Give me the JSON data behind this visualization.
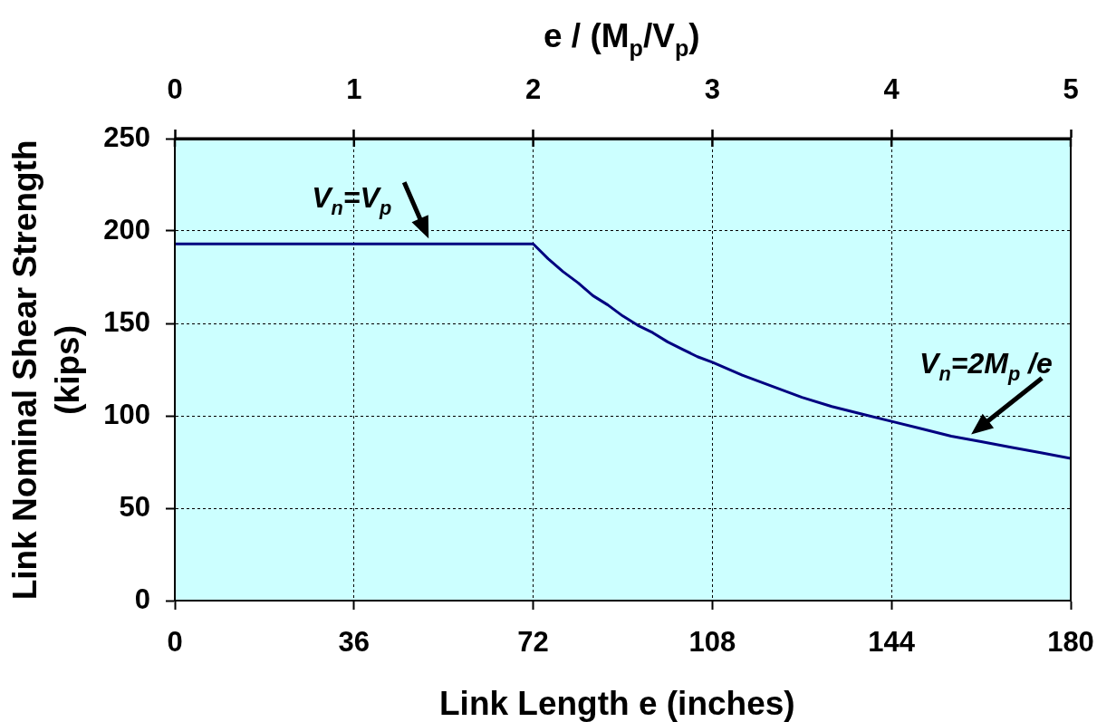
{
  "chart_data": {
    "type": "line",
    "xlabel": "Link Length e (inches)",
    "ylabel": "Link Nominal Shear Strength\n(kips)",
    "x2label": "e / (M$_{p}$/V$_{p}$)",
    "x": [
      0,
      72,
      75,
      78,
      81,
      84,
      87,
      90,
      93,
      96,
      99,
      102,
      105,
      108,
      114,
      120,
      126,
      132,
      138,
      144,
      150,
      156,
      162,
      168,
      174,
      180
    ],
    "values": [
      193,
      193,
      185,
      178,
      172,
      165,
      160,
      154,
      149,
      145,
      140,
      136,
      132,
      129,
      122,
      116,
      110,
      105,
      101,
      97,
      93,
      89,
      86,
      83,
      80,
      77
    ],
    "color": "#000080",
    "xlim": [
      0,
      180
    ],
    "xticks": [
      0,
      36,
      72,
      108,
      144,
      180
    ],
    "ylim": [
      0,
      250
    ],
    "yticks": [
      0,
      50,
      100,
      150,
      200,
      250
    ],
    "x2lim": [
      0,
      5
    ],
    "x2ticks": [
      0,
      1,
      2,
      3,
      4,
      5
    ],
    "grid": true,
    "annotations": [
      {
        "text": "V$_{n}$=V$_{p}$",
        "x": 51,
        "y": 193
      },
      {
        "text": "V$_{n}$=2M$_{p}$ /e",
        "x": 160,
        "y": 87
      }
    ]
  }
}
